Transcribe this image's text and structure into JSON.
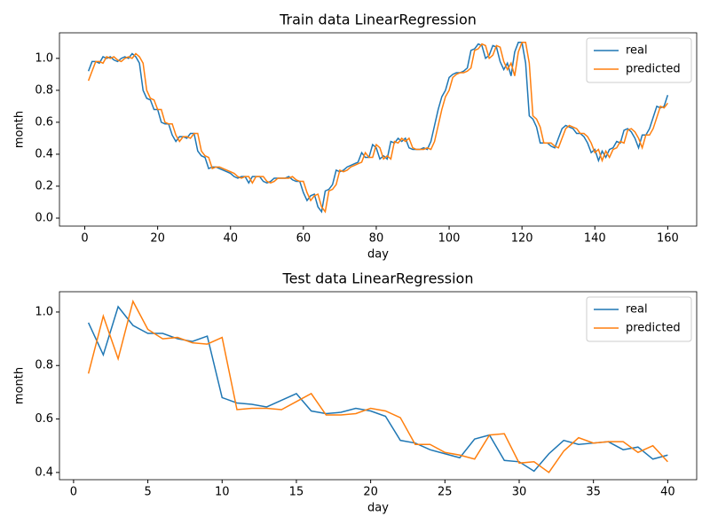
{
  "chart_data": [
    {
      "type": "line",
      "title": "Train data LinearRegression",
      "xlabel": "day",
      "ylabel": "month",
      "x": [
        1,
        2,
        3,
        4,
        5,
        6,
        7,
        8,
        9,
        10,
        11,
        12,
        13,
        14,
        15,
        16,
        17,
        18,
        19,
        20,
        21,
        22,
        23,
        24,
        25,
        26,
        27,
        28,
        29,
        30,
        31,
        32,
        33,
        34,
        35,
        36,
        37,
        38,
        39,
        40,
        41,
        42,
        43,
        44,
        45,
        46,
        47,
        48,
        49,
        50,
        51,
        52,
        53,
        54,
        55,
        56,
        57,
        58,
        59,
        60,
        61,
        62,
        63,
        64,
        65,
        66,
        67,
        68,
        69,
        70,
        71,
        72,
        73,
        74,
        75,
        76,
        77,
        78,
        79,
        80,
        81,
        82,
        83,
        84,
        85,
        86,
        87,
        88,
        89,
        90,
        91,
        92,
        93,
        94,
        95,
        96,
        97,
        98,
        99,
        100,
        101,
        102,
        103,
        104,
        105,
        106,
        107,
        108,
        109,
        110,
        111,
        112,
        113,
        114,
        115,
        116,
        117,
        118,
        119,
        120,
        121,
        122,
        123,
        124,
        125,
        126,
        127,
        128,
        129,
        130,
        131,
        132,
        133,
        134,
        135,
        136,
        137,
        138,
        139,
        140,
        141,
        142,
        143,
        144,
        145,
        146,
        147,
        148,
        149,
        150,
        151,
        152,
        153,
        154,
        155,
        156,
        157,
        158,
        159,
        160
      ],
      "series": [
        {
          "name": "real",
          "color": "#1f77b4",
          "values": [
            0.92,
            0.98,
            0.98,
            0.97,
            1.01,
            1.0,
            1.01,
            0.99,
            0.98,
            1.0,
            1.01,
            1.0,
            1.03,
            1.01,
            0.97,
            0.8,
            0.75,
            0.74,
            0.68,
            0.68,
            0.6,
            0.59,
            0.59,
            0.52,
            0.48,
            0.51,
            0.51,
            0.5,
            0.53,
            0.53,
            0.42,
            0.39,
            0.38,
            0.31,
            0.32,
            0.32,
            0.31,
            0.3,
            0.29,
            0.28,
            0.26,
            0.25,
            0.26,
            0.26,
            0.22,
            0.26,
            0.26,
            0.26,
            0.23,
            0.22,
            0.23,
            0.25,
            0.25,
            0.25,
            0.25,
            0.26,
            0.24,
            0.23,
            0.23,
            0.16,
            0.11,
            0.14,
            0.15,
            0.07,
            0.04,
            0.17,
            0.18,
            0.21,
            0.3,
            0.29,
            0.3,
            0.32,
            0.33,
            0.34,
            0.35,
            0.41,
            0.38,
            0.38,
            0.46,
            0.44,
            0.37,
            0.39,
            0.37,
            0.48,
            0.47,
            0.5,
            0.48,
            0.5,
            0.44,
            0.43,
            0.43,
            0.43,
            0.44,
            0.43,
            0.48,
            0.58,
            0.68,
            0.76,
            0.8,
            0.88,
            0.9,
            0.91,
            0.91,
            0.92,
            0.94,
            1.05,
            1.06,
            1.09,
            1.08,
            1.0,
            1.02,
            1.08,
            1.07,
            0.98,
            0.93,
            0.97,
            0.89,
            1.04,
            1.1,
            1.1,
            0.97,
            0.64,
            0.62,
            0.57,
            0.47,
            0.47,
            0.47,
            0.45,
            0.44,
            0.5,
            0.56,
            0.58,
            0.57,
            0.56,
            0.53,
            0.53,
            0.51,
            0.47,
            0.41,
            0.43,
            0.36,
            0.42,
            0.38,
            0.43,
            0.44,
            0.48,
            0.47,
            0.55,
            0.56,
            0.54,
            0.5,
            0.44,
            0.52,
            0.52,
            0.56,
            0.63,
            0.7,
            0.69,
            0.7,
            0.77
          ]
        },
        {
          "name": "predicted",
          "color": "#ff7f0e",
          "values": [
            0.86,
            0.92,
            0.98,
            0.98,
            0.97,
            1.01,
            1.0,
            1.01,
            0.99,
            0.98,
            1.0,
            1.01,
            1.0,
            1.03,
            1.01,
            0.97,
            0.8,
            0.75,
            0.74,
            0.68,
            0.68,
            0.6,
            0.59,
            0.59,
            0.52,
            0.48,
            0.51,
            0.51,
            0.5,
            0.53,
            0.53,
            0.42,
            0.39,
            0.38,
            0.31,
            0.32,
            0.32,
            0.31,
            0.3,
            0.29,
            0.28,
            0.26,
            0.25,
            0.26,
            0.26,
            0.22,
            0.26,
            0.26,
            0.26,
            0.23,
            0.22,
            0.23,
            0.25,
            0.25,
            0.25,
            0.25,
            0.26,
            0.24,
            0.23,
            0.23,
            0.16,
            0.11,
            0.14,
            0.15,
            0.07,
            0.04,
            0.17,
            0.18,
            0.21,
            0.3,
            0.29,
            0.3,
            0.32,
            0.33,
            0.34,
            0.35,
            0.41,
            0.38,
            0.38,
            0.46,
            0.44,
            0.37,
            0.39,
            0.37,
            0.48,
            0.47,
            0.5,
            0.48,
            0.5,
            0.44,
            0.43,
            0.43,
            0.43,
            0.44,
            0.43,
            0.48,
            0.58,
            0.68,
            0.76,
            0.8,
            0.88,
            0.9,
            0.91,
            0.91,
            0.92,
            0.94,
            1.05,
            1.06,
            1.09,
            1.08,
            1.0,
            1.02,
            1.08,
            1.07,
            0.98,
            0.93,
            0.97,
            0.89,
            1.04,
            1.1,
            1.1,
            0.97,
            0.64,
            0.62,
            0.57,
            0.47,
            0.47,
            0.47,
            0.45,
            0.44,
            0.5,
            0.56,
            0.58,
            0.57,
            0.56,
            0.53,
            0.53,
            0.51,
            0.47,
            0.41,
            0.43,
            0.36,
            0.42,
            0.38,
            0.43,
            0.44,
            0.48,
            0.47,
            0.55,
            0.56,
            0.54,
            0.5,
            0.44,
            0.52,
            0.52,
            0.56,
            0.63,
            0.7,
            0.69,
            0.72
          ]
        }
      ],
      "xlim": [
        -6.95,
        167.95
      ],
      "ylim": [
        -0.05,
        1.16
      ],
      "xticks": [
        0,
        20,
        40,
        60,
        80,
        100,
        120,
        140,
        160
      ],
      "yticks": [
        {
          "value": 0,
          "label": "0.0"
        },
        0.2,
        0.4,
        0.6,
        0.8,
        {
          "value": 1,
          "label": "1.0"
        }
      ],
      "legend": "upper right"
    },
    {
      "type": "line",
      "title": "Test data LinearRegression",
      "xlabel": "day",
      "ylabel": "month",
      "x": [
        1,
        2,
        3,
        4,
        5,
        6,
        7,
        8,
        9,
        10,
        11,
        12,
        13,
        14,
        15,
        16,
        17,
        18,
        19,
        20,
        21,
        22,
        23,
        24,
        25,
        26,
        27,
        28,
        29,
        30,
        31,
        32,
        33,
        34,
        35,
        36,
        37,
        38,
        39,
        40
      ],
      "series": [
        {
          "name": "real",
          "color": "#1f77b4",
          "values": [
            0.96,
            0.84,
            1.02,
            0.95,
            0.92,
            0.92,
            0.9,
            0.89,
            0.91,
            0.68,
            0.66,
            0.655,
            0.645,
            0.67,
            0.695,
            0.63,
            0.62,
            0.625,
            0.64,
            0.63,
            0.61,
            0.52,
            0.51,
            0.485,
            0.47,
            0.455,
            0.525,
            0.54,
            0.445,
            0.44,
            0.405,
            0.47,
            0.52,
            0.505,
            0.51,
            0.515,
            0.485,
            0.495,
            0.45,
            0.465
          ]
        },
        {
          "name": "predicted",
          "color": "#ff7f0e",
          "values": [
            0.77,
            0.985,
            0.825,
            1.04,
            0.935,
            0.9,
            0.905,
            0.885,
            0.88,
            0.905,
            0.635,
            0.64,
            0.64,
            0.635,
            0.665,
            0.695,
            0.615,
            0.615,
            0.62,
            0.64,
            0.63,
            0.605,
            0.505,
            0.505,
            0.475,
            0.465,
            0.45,
            0.54,
            0.545,
            0.435,
            0.44,
            0.4,
            0.48,
            0.53,
            0.51,
            0.515,
            0.515,
            0.475,
            0.5,
            0.44
          ]
        }
      ],
      "xlim": [
        -0.95,
        41.95
      ],
      "ylim": [
        0.373,
        1.076
      ],
      "xticks": [
        0,
        5,
        10,
        15,
        20,
        25,
        30,
        35,
        40
      ],
      "yticks": [
        0.4,
        0.6,
        0.8,
        {
          "value": 1,
          "label": "1.0"
        }
      ],
      "legend": "upper right"
    }
  ]
}
